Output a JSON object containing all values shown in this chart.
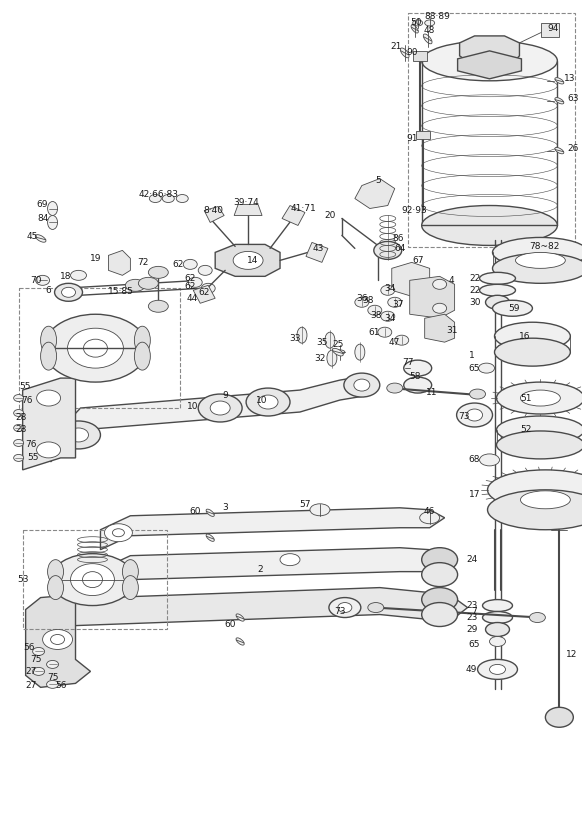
{
  "bg_color": "#ffffff",
  "line_color": "#4a4a4a",
  "text_color": "#1a1a1a",
  "dash_color": "#888888",
  "fig_width": 5.83,
  "fig_height": 8.36,
  "dpi": 100
}
